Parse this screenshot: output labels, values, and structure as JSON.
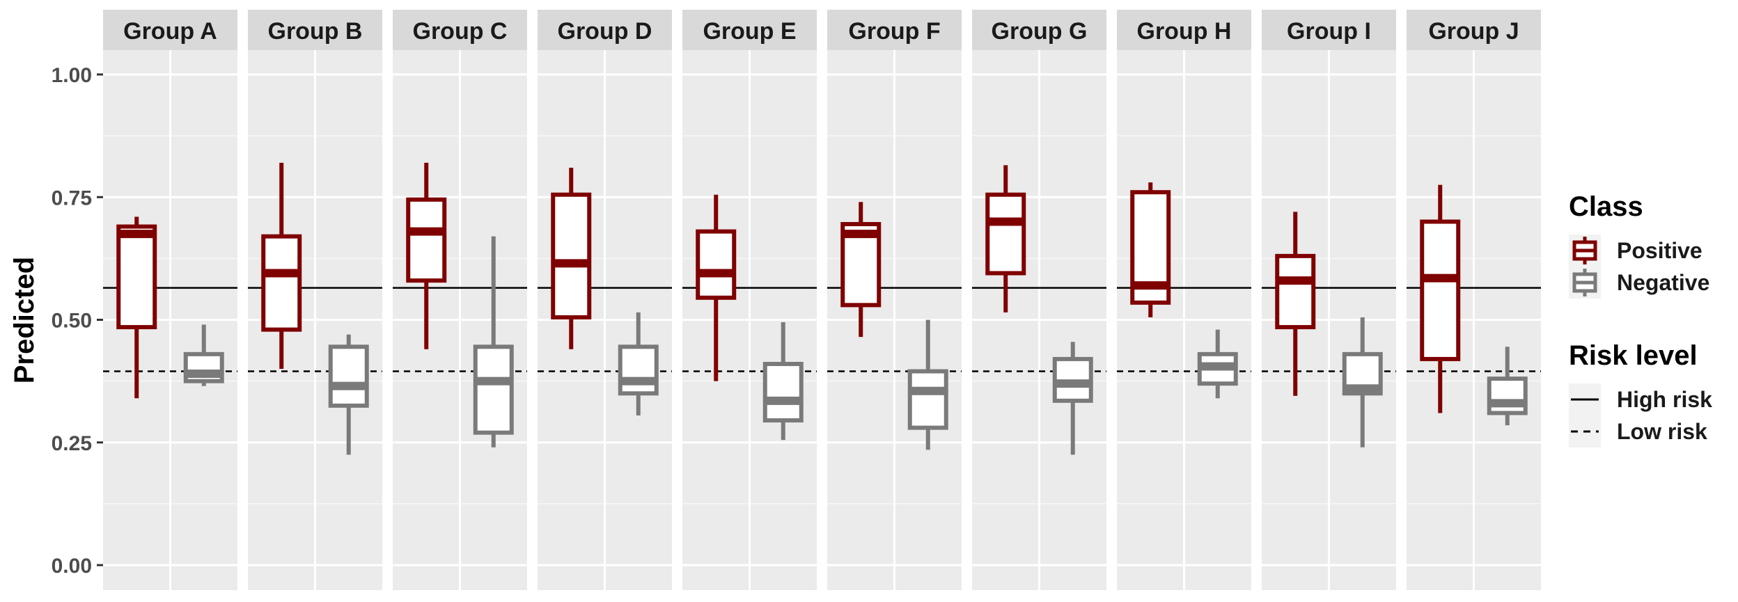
{
  "chart_data": {
    "type": "boxplot",
    "ylabel": "Predicted",
    "xlabel": "",
    "ylim": [
      0,
      1.05
    ],
    "yticks": [
      "0.00",
      "0.25",
      "0.50",
      "0.75",
      "1.00"
    ],
    "ytick_values": [
      0,
      0.25,
      0.5,
      0.75,
      1.0
    ],
    "grid": true,
    "legend_position": "right",
    "class_legend": {
      "title": "Class",
      "items": [
        {
          "label": "Positive",
          "color": "#7f0000"
        },
        {
          "label": "Negative",
          "color": "#7a7a7a"
        }
      ]
    },
    "risk_legend": {
      "title": "Risk level",
      "items": [
        {
          "label": "High risk",
          "linetype": "solid"
        },
        {
          "label": "Low risk",
          "linetype": "dashed"
        }
      ]
    },
    "reference_lines": [
      {
        "name": "High risk",
        "value": 0.565,
        "linetype": "solid"
      },
      {
        "name": "Low risk",
        "value": 0.395,
        "linetype": "dashed"
      }
    ],
    "facets": [
      {
        "label": "Group A",
        "boxes": [
          {
            "class": "Positive",
            "whisker_low": 0.34,
            "q1": 0.485,
            "median": 0.675,
            "q3": 0.69,
            "whisker_high": 0.71
          },
          {
            "class": "Negative",
            "whisker_low": 0.365,
            "q1": 0.375,
            "median": 0.39,
            "q3": 0.43,
            "whisker_high": 0.49
          }
        ]
      },
      {
        "label": "Group B",
        "boxes": [
          {
            "class": "Positive",
            "whisker_low": 0.4,
            "q1": 0.48,
            "median": 0.595,
            "q3": 0.67,
            "whisker_high": 0.82
          },
          {
            "class": "Negative",
            "whisker_low": 0.225,
            "q1": 0.325,
            "median": 0.365,
            "q3": 0.445,
            "whisker_high": 0.47
          }
        ]
      },
      {
        "label": "Group C",
        "boxes": [
          {
            "class": "Positive",
            "whisker_low": 0.44,
            "q1": 0.58,
            "median": 0.68,
            "q3": 0.745,
            "whisker_high": 0.82
          },
          {
            "class": "Negative",
            "whisker_low": 0.24,
            "q1": 0.27,
            "median": 0.375,
            "q3": 0.445,
            "whisker_high": 0.67
          }
        ]
      },
      {
        "label": "Group D",
        "boxes": [
          {
            "class": "Positive",
            "whisker_low": 0.44,
            "q1": 0.505,
            "median": 0.615,
            "q3": 0.755,
            "whisker_high": 0.81
          },
          {
            "class": "Negative",
            "whisker_low": 0.305,
            "q1": 0.35,
            "median": 0.375,
            "q3": 0.445,
            "whisker_high": 0.515
          }
        ]
      },
      {
        "label": "Group E",
        "boxes": [
          {
            "class": "Positive",
            "whisker_low": 0.375,
            "q1": 0.545,
            "median": 0.595,
            "q3": 0.68,
            "whisker_high": 0.755
          },
          {
            "class": "Negative",
            "whisker_low": 0.255,
            "q1": 0.295,
            "median": 0.335,
            "q3": 0.41,
            "whisker_high": 0.495
          }
        ]
      },
      {
        "label": "Group F",
        "boxes": [
          {
            "class": "Positive",
            "whisker_low": 0.465,
            "q1": 0.53,
            "median": 0.675,
            "q3": 0.695,
            "whisker_high": 0.74
          },
          {
            "class": "Negative",
            "whisker_low": 0.235,
            "q1": 0.28,
            "median": 0.355,
            "q3": 0.395,
            "whisker_high": 0.5
          }
        ]
      },
      {
        "label": "Group G",
        "boxes": [
          {
            "class": "Positive",
            "whisker_low": 0.515,
            "q1": 0.595,
            "median": 0.7,
            "q3": 0.755,
            "whisker_high": 0.815
          },
          {
            "class": "Negative",
            "whisker_low": 0.225,
            "q1": 0.335,
            "median": 0.37,
            "q3": 0.42,
            "whisker_high": 0.455
          }
        ]
      },
      {
        "label": "Group H",
        "boxes": [
          {
            "class": "Positive",
            "whisker_low": 0.505,
            "q1": 0.535,
            "median": 0.57,
            "q3": 0.76,
            "whisker_high": 0.78
          },
          {
            "class": "Negative",
            "whisker_low": 0.34,
            "q1": 0.37,
            "median": 0.405,
            "q3": 0.43,
            "whisker_high": 0.48
          }
        ]
      },
      {
        "label": "Group I",
        "boxes": [
          {
            "class": "Positive",
            "whisker_low": 0.345,
            "q1": 0.485,
            "median": 0.58,
            "q3": 0.63,
            "whisker_high": 0.72
          },
          {
            "class": "Negative",
            "whisker_low": 0.24,
            "q1": 0.35,
            "median": 0.36,
            "q3": 0.43,
            "whisker_high": 0.505
          }
        ]
      },
      {
        "label": "Group J",
        "boxes": [
          {
            "class": "Positive",
            "whisker_low": 0.31,
            "q1": 0.42,
            "median": 0.585,
            "q3": 0.7,
            "whisker_high": 0.775
          },
          {
            "class": "Negative",
            "whisker_low": 0.285,
            "q1": 0.31,
            "median": 0.33,
            "q3": 0.38,
            "whisker_high": 0.445
          }
        ]
      }
    ]
  }
}
